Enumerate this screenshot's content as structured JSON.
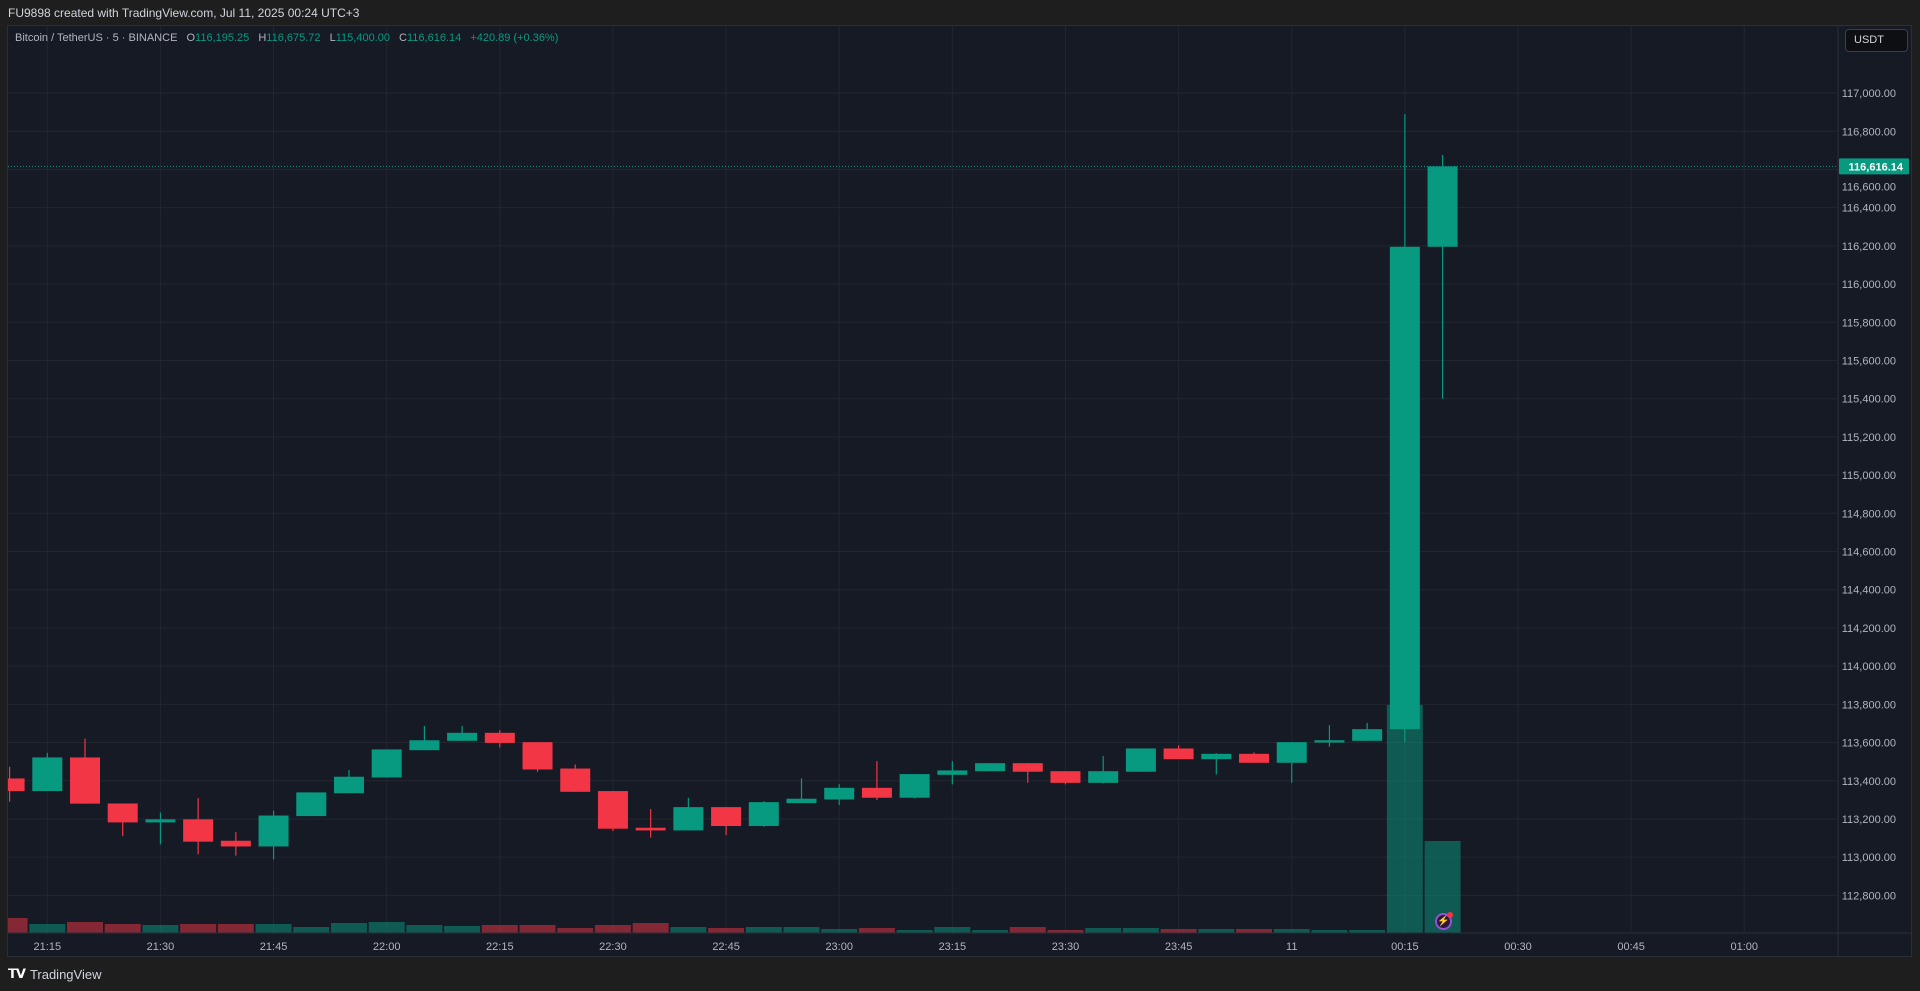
{
  "header": {
    "title": "FU9898 created with TradingView.com, Jul 11, 2025 00:24 UTC+3"
  },
  "legend": {
    "symbol": "Bitcoin / TetherUS · 5 · BINANCE",
    "o_label": "O",
    "o_value": "116,195.25",
    "h_label": "H",
    "h_value": "116,675.72",
    "l_label": "L",
    "l_value": "115,400.00",
    "c_label": "C",
    "c_value": "116,616.14",
    "change": "+420.89 (+0.36%)"
  },
  "currency_button": "USDT",
  "last_price_label": "116,616.14",
  "footer": {
    "logo": "TV",
    "brand": "TradingView"
  },
  "colors": {
    "up": "#089981",
    "down": "#f23645",
    "background": "#161a25",
    "grid": "#222631"
  },
  "icons": {
    "flash": "lightning-icon"
  },
  "chart_data": {
    "type": "candlestick",
    "title": "Bitcoin / TetherUS · 5 · BINANCE",
    "interval_minutes": 5,
    "ylim": [
      112603,
      117351
    ],
    "grid": true,
    "last_price": 116616.14,
    "y_ticks": [
      "117,000.00",
      "116,800.00",
      "116,600.00",
      "116,400.00",
      "116,200.00",
      "116,000.00",
      "115,800.00",
      "115,600.00",
      "115,400.00",
      "115,200.00",
      "115,000.00",
      "114,800.00",
      "114,600.00",
      "114,400.00",
      "114,200.00",
      "114,000.00",
      "113,800.00",
      "113,600.00",
      "113,400.00",
      "113,200.00",
      "113,000.00",
      "112,800.00"
    ],
    "x_ticks": [
      "21:15",
      "21:30",
      "21:45",
      "22:00",
      "22:15",
      "22:30",
      "22:45",
      "23:00",
      "23:15",
      "23:30",
      "23:45",
      "11",
      "00:15",
      "00:30",
      "00:45",
      "01:00"
    ],
    "candles": [
      [
        "21:10",
        113412,
        113473,
        113290,
        113346
      ],
      [
        "21:15",
        113346,
        113546,
        113346,
        113522
      ],
      [
        "21:20",
        113522,
        113621,
        113280,
        113280
      ],
      [
        "21:25",
        113281,
        113281,
        113110,
        113182
      ],
      [
        "21:30",
        113182,
        113234,
        113067,
        113198
      ],
      [
        "21:35",
        113198,
        113309,
        113015,
        113081
      ],
      [
        "21:40",
        113086,
        113131,
        113008,
        113056
      ],
      [
        "21:45",
        113056,
        113243,
        112988,
        113218
      ],
      [
        "21:50",
        113215,
        113339,
        113215,
        113339
      ],
      [
        "21:55",
        113335,
        113456,
        113335,
        113421
      ],
      [
        "22:00",
        113417,
        113564,
        113417,
        113564
      ],
      [
        "22:05",
        113560,
        113687,
        113560,
        113612
      ],
      [
        "22:10",
        113609,
        113687,
        113609,
        113651
      ],
      [
        "22:15",
        113651,
        113665,
        113574,
        113598
      ],
      [
        "22:20",
        113602,
        113602,
        113447,
        113459
      ],
      [
        "22:25",
        113464,
        113485,
        113342,
        113342
      ],
      [
        "22:30",
        113346,
        113346,
        113137,
        113149
      ],
      [
        "22:35",
        113154,
        113252,
        113102,
        113140
      ],
      [
        "22:40",
        113140,
        113311,
        113140,
        113262
      ],
      [
        "22:45",
        113262,
        113262,
        113116,
        113163
      ],
      [
        "22:50",
        113163,
        113293,
        113159,
        113288
      ],
      [
        "22:55",
        113283,
        113412,
        113283,
        113306
      ],
      [
        "23:00",
        113302,
        113382,
        113273,
        113363
      ],
      [
        "23:05",
        113363,
        113503,
        113299,
        113311
      ],
      [
        "23:10",
        113311,
        113435,
        113307,
        113435
      ],
      [
        "23:15",
        113431,
        113503,
        113381,
        113454
      ],
      [
        "23:20",
        113450,
        113492,
        113450,
        113492
      ],
      [
        "23:25",
        113492,
        113492,
        113389,
        113447
      ],
      [
        "23:30",
        113450,
        113450,
        113381,
        113389
      ],
      [
        "23:35",
        113389,
        113529,
        113386,
        113450
      ],
      [
        "23:40",
        113447,
        113569,
        113447,
        113569
      ],
      [
        "23:45",
        113569,
        113586,
        113513,
        113513
      ],
      [
        "23:50",
        113513,
        113544,
        113433,
        113541
      ],
      [
        "23:55",
        113541,
        113548,
        113494,
        113494
      ],
      [
        "00:00",
        113494,
        113602,
        113389,
        113602
      ],
      [
        "00:05",
        113600,
        113691,
        113578,
        113612
      ],
      [
        "00:10",
        113609,
        113703,
        113609,
        113670
      ],
      [
        "00:15",
        113670,
        116890,
        113600,
        116195.25
      ],
      [
        "00:20",
        116195.25,
        116675.72,
        115400,
        116616.14
      ]
    ],
    "volume_relative": [
      15,
      9,
      11,
      9,
      8,
      9,
      9,
      9,
      6,
      10,
      11,
      8,
      7,
      8,
      8,
      5,
      8,
      10,
      6,
      5,
      6,
      6,
      4,
      5,
      3,
      6,
      3,
      6,
      3,
      5,
      5,
      4,
      4,
      4,
      4,
      3,
      3,
      228,
      92
    ]
  }
}
